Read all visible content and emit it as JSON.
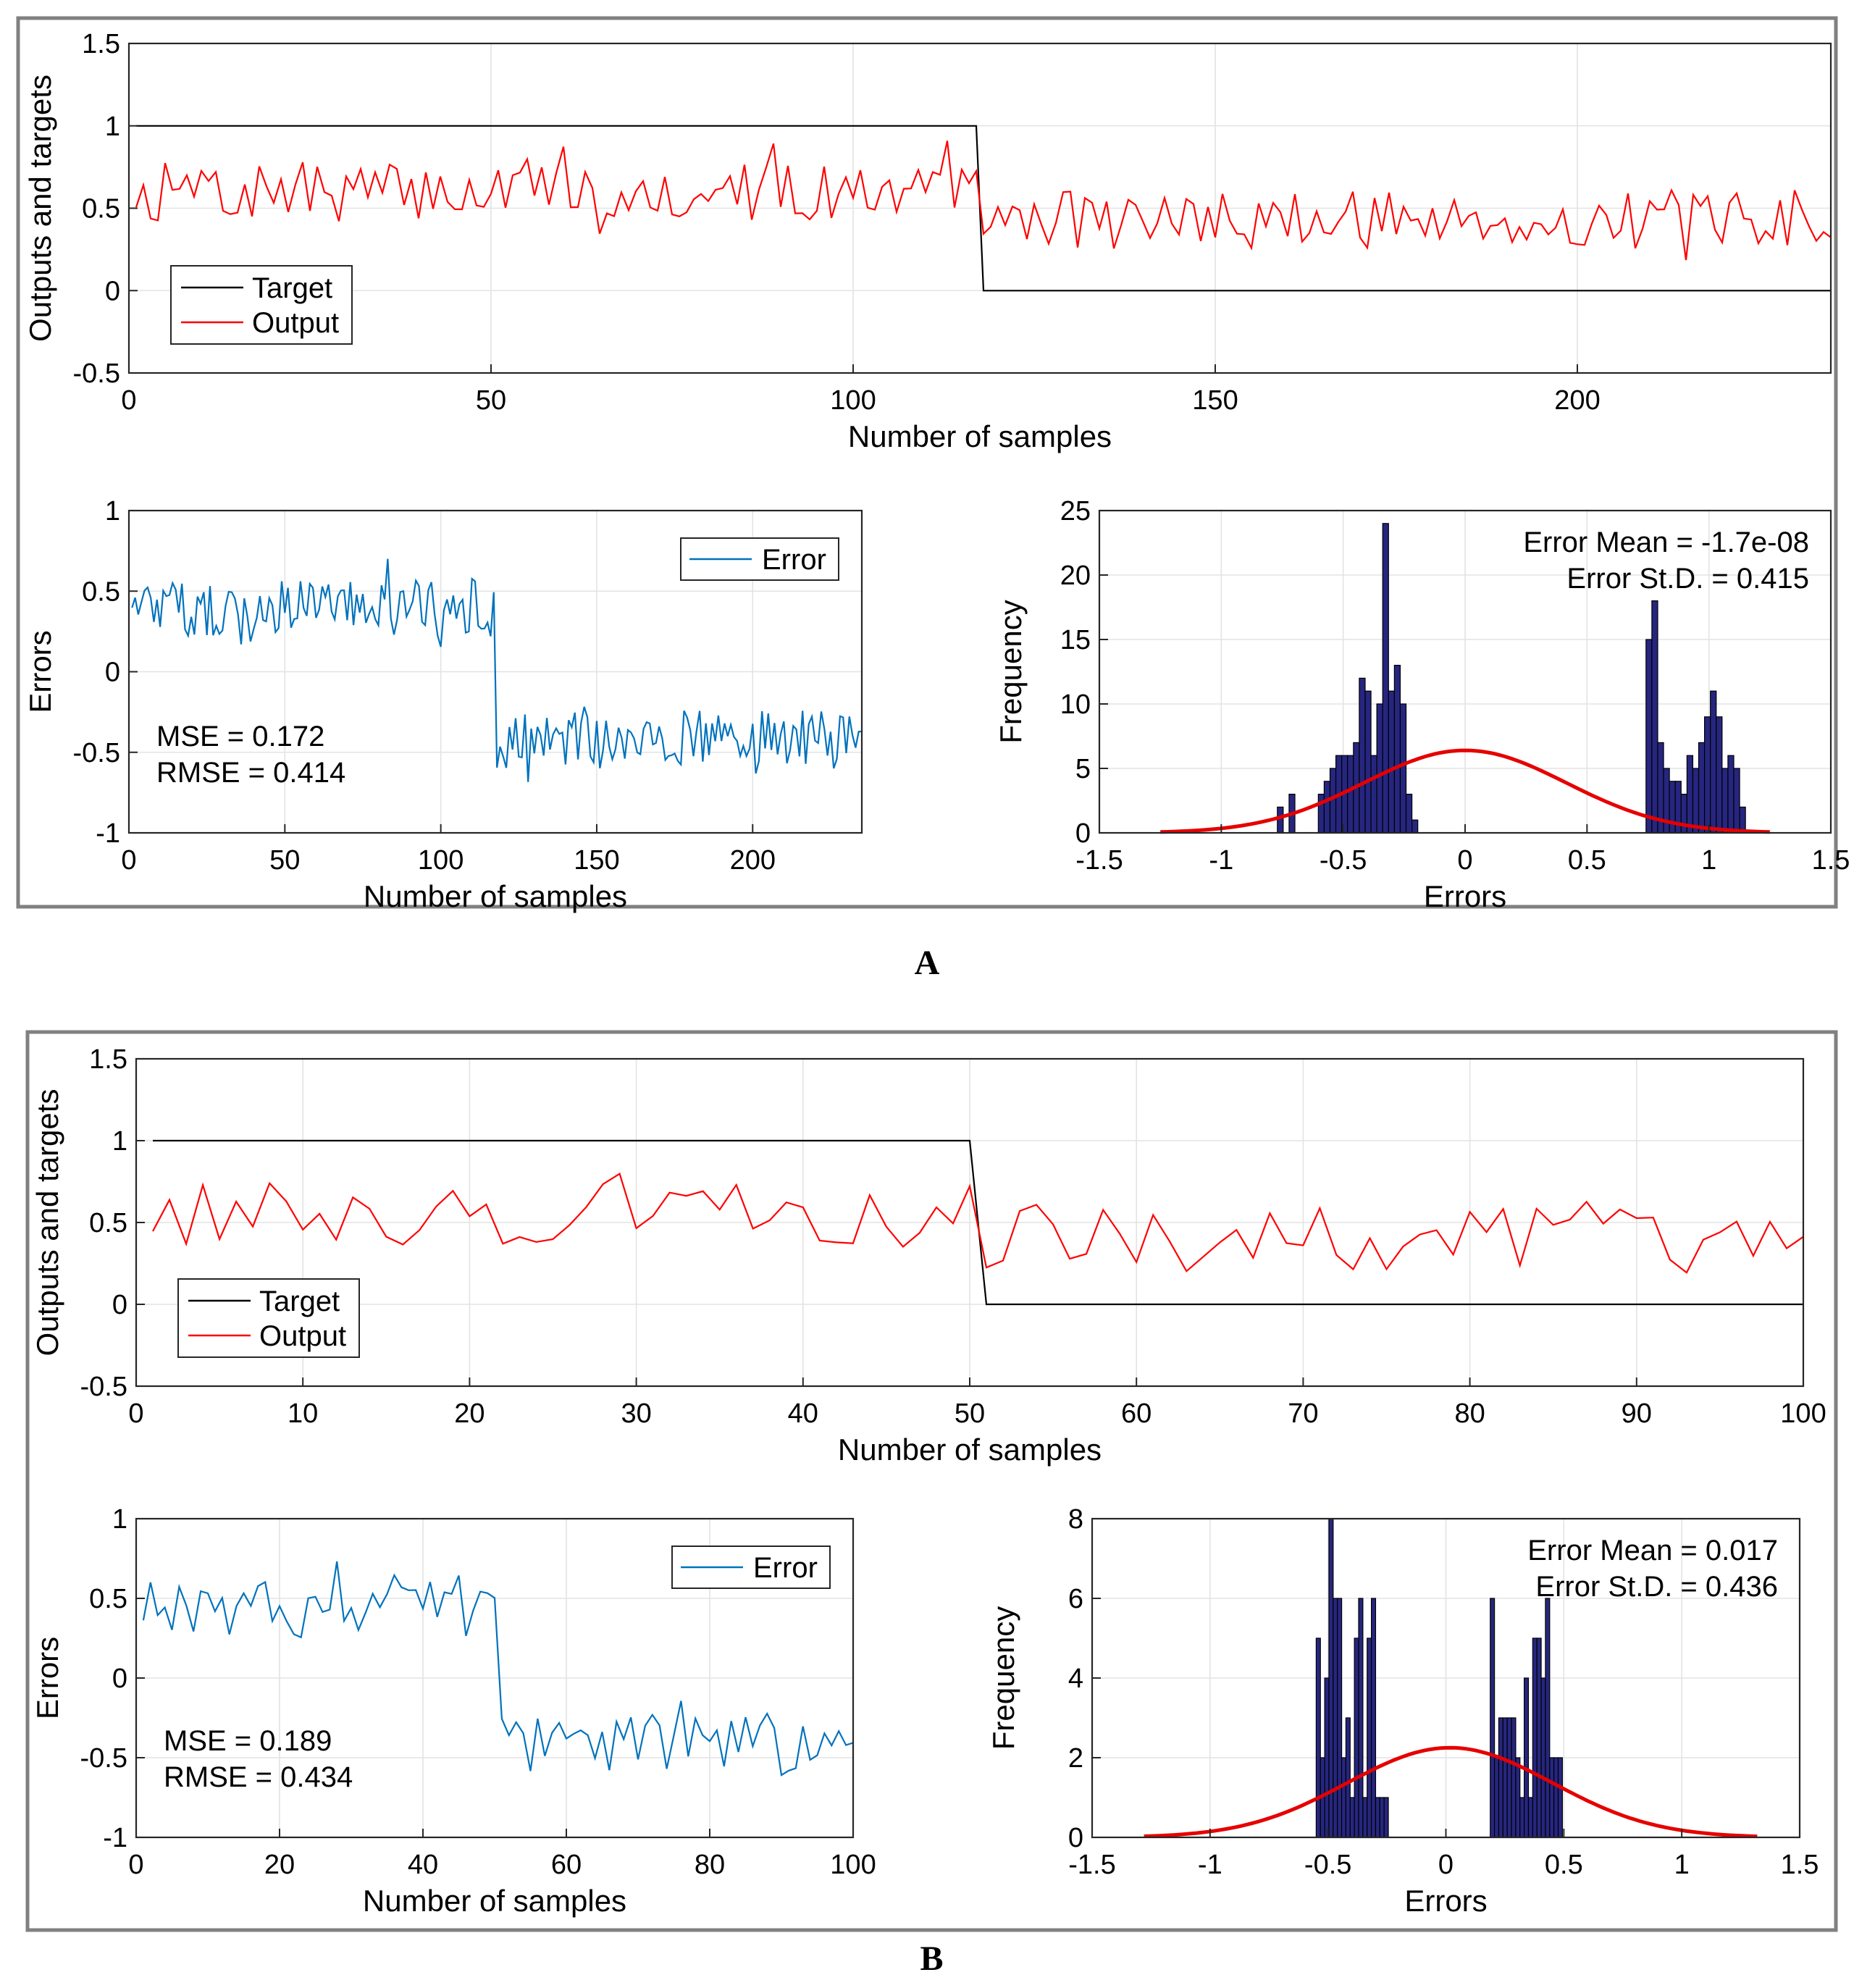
{
  "colors": {
    "target": "#000000",
    "output": "#ff0000",
    "error": "#0072bd",
    "bar_fill": "#262680",
    "bar_edge": "#000000",
    "fit": "#e60000",
    "grid": "#e3e3e3",
    "frame": "#808080"
  },
  "panels": [
    {
      "letter": "A",
      "seed": 7,
      "chart_data": [
        {
          "type": "line",
          "role": "outputs",
          "xlabel": "Number of samples",
          "ylabel": "Outputs and targets",
          "xlim": [
            0,
            235
          ],
          "ylim": [
            -0.5,
            1.5
          ],
          "xticks": [
            0,
            50,
            100,
            150,
            200
          ],
          "yticks": [
            -0.5,
            0,
            0.5,
            1,
            1.5
          ],
          "legend": {
            "placement": "lower-left",
            "entries": [
              "Target",
              "Output"
            ]
          },
          "series": [
            {
              "name": "Target",
              "n": 235,
              "switch_at": 118,
              "high": 1,
              "low": 0
            },
            {
              "name": "Output",
              "n": 235,
              "switch_at": 118,
              "mean_high": 0.6,
              "mean_low": 0.43,
              "spread": 0.18
            }
          ]
        },
        {
          "type": "line",
          "role": "errors",
          "xlabel": "Number of samples",
          "ylabel": "Errors",
          "xlim": [
            0,
            235
          ],
          "ylim": [
            -1,
            1
          ],
          "xticks": [
            0,
            50,
            100,
            150,
            200
          ],
          "yticks": [
            -1,
            -0.5,
            0,
            0.5,
            1
          ],
          "legend": {
            "placement": "top-right",
            "entries": [
              "Error"
            ]
          },
          "series": [
            {
              "name": "Error",
              "n": 235,
              "switch_at": 118,
              "mean_high": 0.4,
              "mean_low": -0.42,
              "spread": 0.18
            }
          ],
          "annotations": [
            "MSE = 0.172",
            "RMSE = 0.414"
          ]
        },
        {
          "type": "bar",
          "role": "histogram",
          "xlabel": "Errors",
          "ylabel": "Frequency",
          "xlim": [
            -1.5,
            1.5
          ],
          "ylim": [
            0,
            25
          ],
          "xticks": [
            -1.5,
            -1,
            -0.5,
            0,
            0.5,
            1,
            1.5
          ],
          "yticks": [
            0,
            5,
            10,
            15,
            20,
            25
          ],
          "bin_start": -0.77,
          "bin_width": 0.024,
          "values": [
            2,
            0,
            3,
            0,
            0,
            0,
            0,
            3,
            4,
            5,
            6,
            6,
            6,
            7,
            12,
            11,
            6,
            10,
            24,
            11,
            13,
            10,
            3,
            1,
            0,
            0,
            0,
            0,
            0,
            0,
            0,
            0,
            0,
            0,
            0,
            0,
            0,
            0,
            0,
            0,
            0,
            0,
            0,
            0,
            0,
            0,
            0,
            0,
            0,
            0,
            0,
            0,
            0,
            0,
            0,
            0,
            0,
            0,
            0,
            0,
            0,
            0,
            0,
            15,
            18,
            7,
            5,
            4,
            4,
            3,
            6,
            5,
            7,
            9,
            11,
            9,
            5,
            6,
            5,
            2,
            0
          ],
          "fit": {
            "mean": 0,
            "std": 0.415,
            "peak": 6.4,
            "range": [
              -1.25,
              1.25
            ]
          },
          "annotations": [
            "Error Mean = -1.7e-08",
            "Error St.D. = 0.415"
          ]
        }
      ]
    },
    {
      "letter": "B",
      "seed": 13,
      "chart_data": [
        {
          "type": "line",
          "role": "outputs",
          "xlabel": "Number of samples",
          "ylabel": "Outputs and targets",
          "xlim": [
            0,
            100
          ],
          "ylim": [
            -0.5,
            1.5
          ],
          "xticks": [
            0,
            10,
            20,
            30,
            40,
            50,
            60,
            70,
            80,
            90,
            100
          ],
          "yticks": [
            -0.5,
            0,
            0.5,
            1,
            1.5
          ],
          "legend": {
            "placement": "lower-left",
            "entries": [
              "Target",
              "Output"
            ]
          },
          "series": [
            {
              "name": "Target",
              "n": 100,
              "switch_at": 51,
              "high": 1,
              "low": 0
            },
            {
              "name": "Output",
              "n": 100,
              "switch_at": 51,
              "mean_high": 0.55,
              "mean_low": 0.4,
              "spread": 0.2
            }
          ]
        },
        {
          "type": "line",
          "role": "errors",
          "xlabel": "Number of samples",
          "ylabel": "Errors",
          "xlim": [
            0,
            100
          ],
          "ylim": [
            -1,
            1
          ],
          "xticks": [
            0,
            20,
            40,
            60,
            80,
            100
          ],
          "yticks": [
            -1,
            -0.5,
            0,
            0.5,
            1
          ],
          "legend": {
            "placement": "top-right",
            "entries": [
              "Error"
            ]
          },
          "series": [
            {
              "name": "Error",
              "n": 100,
              "switch_at": 51,
              "mean_high": 0.45,
              "mean_low": -0.42,
              "spread": 0.2
            }
          ],
          "annotations": [
            "MSE = 0.189",
            "RMSE = 0.434"
          ]
        },
        {
          "type": "bar",
          "role": "histogram",
          "xlabel": "Errors",
          "ylabel": "Frequency",
          "xlim": [
            -1.5,
            1.5
          ],
          "ylim": [
            0,
            8
          ],
          "xticks": [
            -1.5,
            -1,
            -0.5,
            0,
            0.5,
            1,
            1.5
          ],
          "yticks": [
            0,
            2,
            4,
            6,
            8
          ],
          "bin_start": -0.55,
          "bin_width": 0.018,
          "values": [
            5,
            2,
            4,
            8,
            6,
            6,
            2,
            3,
            1,
            5,
            6,
            1,
            5,
            6,
            1,
            1,
            1,
            0,
            0,
            0,
            0,
            0,
            0,
            0,
            0,
            0,
            0,
            0,
            0,
            0,
            0,
            0,
            0,
            0,
            0,
            0,
            0,
            0,
            0,
            0,
            0,
            6,
            2,
            3,
            3,
            3,
            3,
            2,
            1,
            4,
            1,
            5,
            5,
            4,
            6,
            2,
            2,
            2,
            0
          ],
          "fit": {
            "mean": 0.017,
            "std": 0.436,
            "peak": 2.25,
            "range": [
              -1.28,
              1.32
            ]
          },
          "annotations": [
            "Error Mean = 0.017",
            "Error St.D. = 0.436"
          ]
        }
      ]
    }
  ]
}
